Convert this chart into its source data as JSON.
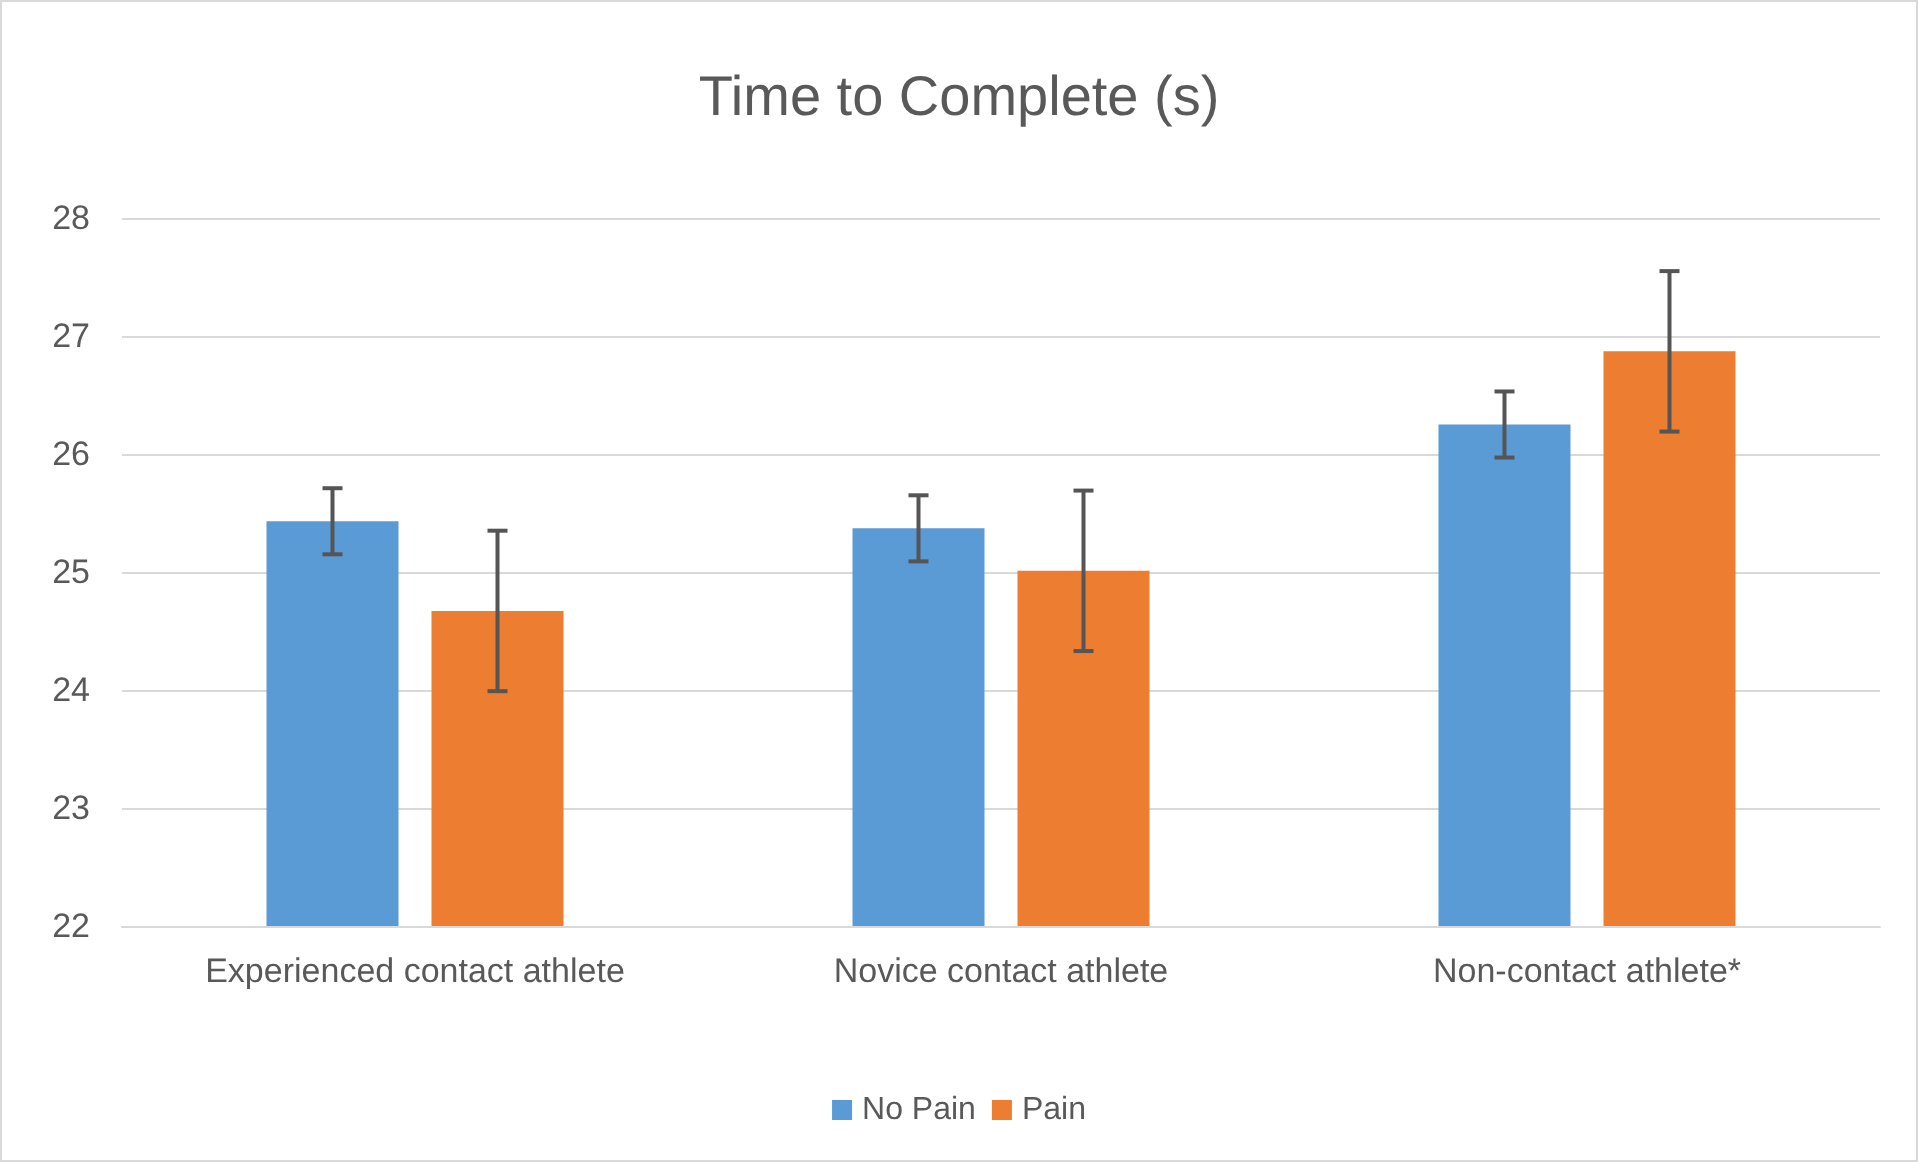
{
  "chart_data": {
    "type": "bar",
    "title": "Time to Complete (s)",
    "categories": [
      "Experienced contact athlete",
      "Novice contact athlete",
      "Non-contact athlete*"
    ],
    "series": [
      {
        "name": "No Pain",
        "color": "#5b9bd5",
        "values": [
          25.43,
          25.37,
          26.25
        ],
        "errors": [
          0.28,
          0.28,
          0.28
        ]
      },
      {
        "name": "Pain",
        "color": "#ed7d31",
        "values": [
          24.67,
          25.01,
          26.87
        ],
        "errors": [
          0.68,
          0.68,
          0.68
        ]
      }
    ],
    "ylim": [
      22,
      28
    ],
    "yticks": [
      22,
      23,
      24,
      25,
      26,
      27,
      28
    ],
    "grid": "y",
    "legend": "bottom"
  }
}
